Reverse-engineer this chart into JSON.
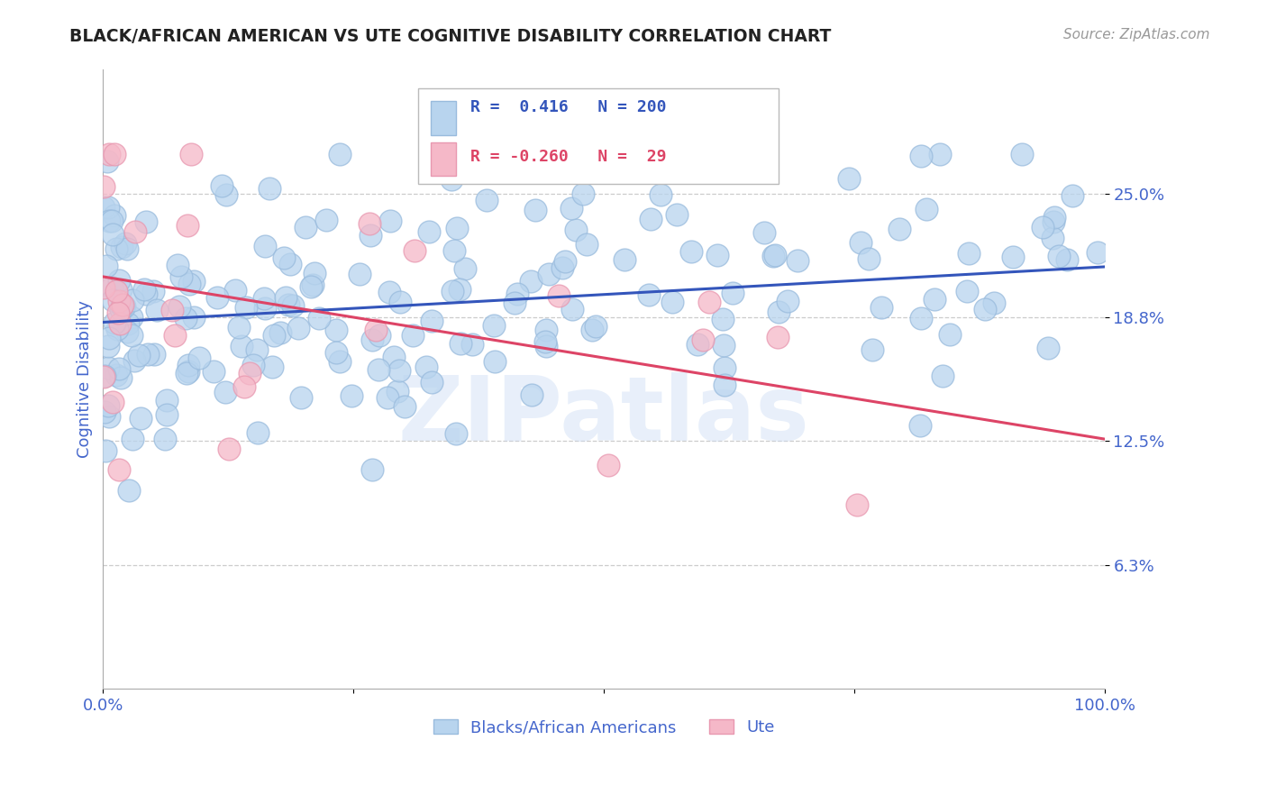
{
  "title": "BLACK/AFRICAN AMERICAN VS UTE COGNITIVE DISABILITY CORRELATION CHART",
  "source": "Source: ZipAtlas.com",
  "ylabel": "Cognitive Disability",
  "xlim": [
    0,
    100
  ],
  "ylim": [
    0,
    31.25
  ],
  "yticks": [
    6.25,
    12.5,
    18.75,
    25.0
  ],
  "ytick_labels": [
    "6.3%",
    "12.5%",
    "18.8%",
    "25.0%"
  ],
  "blue_color": "#b8d4ee",
  "pink_color": "#f5b8c8",
  "blue_edge_color": "#99bbdd",
  "pink_edge_color": "#e898b0",
  "blue_line_color": "#3355bb",
  "pink_line_color": "#dd4466",
  "grid_color": "#cccccc",
  "background_color": "#ffffff",
  "title_color": "#222222",
  "tick_label_color": "#4466cc",
  "watermark": "ZIPatlas",
  "blue_N": 200,
  "pink_N": 29,
  "blue_intercept": 18.5,
  "blue_slope": 0.028,
  "pink_intercept": 20.8,
  "pink_slope": -0.082,
  "seed_blue": 42,
  "seed_pink": 99
}
